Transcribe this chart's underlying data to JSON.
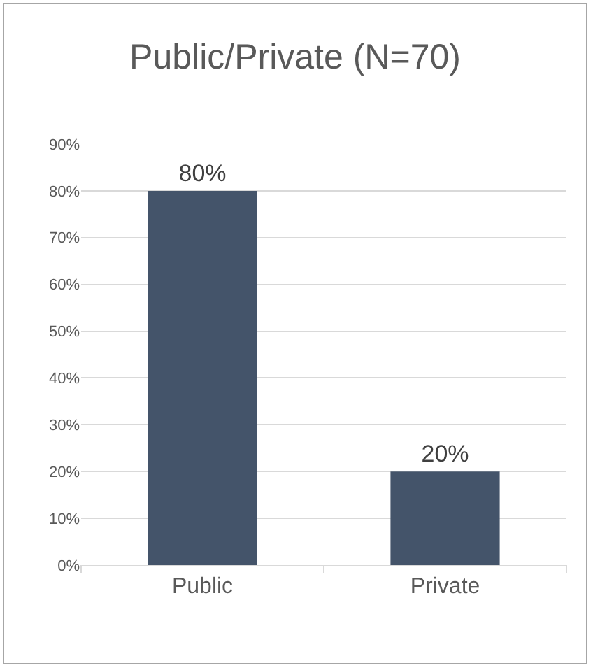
{
  "chart_data": {
    "type": "bar",
    "title": "Public/Private (N=70)",
    "categories": [
      "Public",
      "Private"
    ],
    "values": [
      80,
      20
    ],
    "value_labels": [
      "80%",
      "20%"
    ],
    "color": "#44546a",
    "ylim": [
      0,
      90
    ],
    "yticks": [
      {
        "value": 0,
        "label": "0%"
      },
      {
        "value": 10,
        "label": "10%"
      },
      {
        "value": 20,
        "label": "20%"
      },
      {
        "value": 30,
        "label": "30%"
      },
      {
        "value": 40,
        "label": "40%"
      },
      {
        "value": 50,
        "label": "50%"
      },
      {
        "value": 60,
        "label": "60%"
      },
      {
        "value": 70,
        "label": "70%"
      },
      {
        "value": 80,
        "label": "80%"
      },
      {
        "value": 90,
        "label": "90%"
      }
    ],
    "grid": "y"
  }
}
